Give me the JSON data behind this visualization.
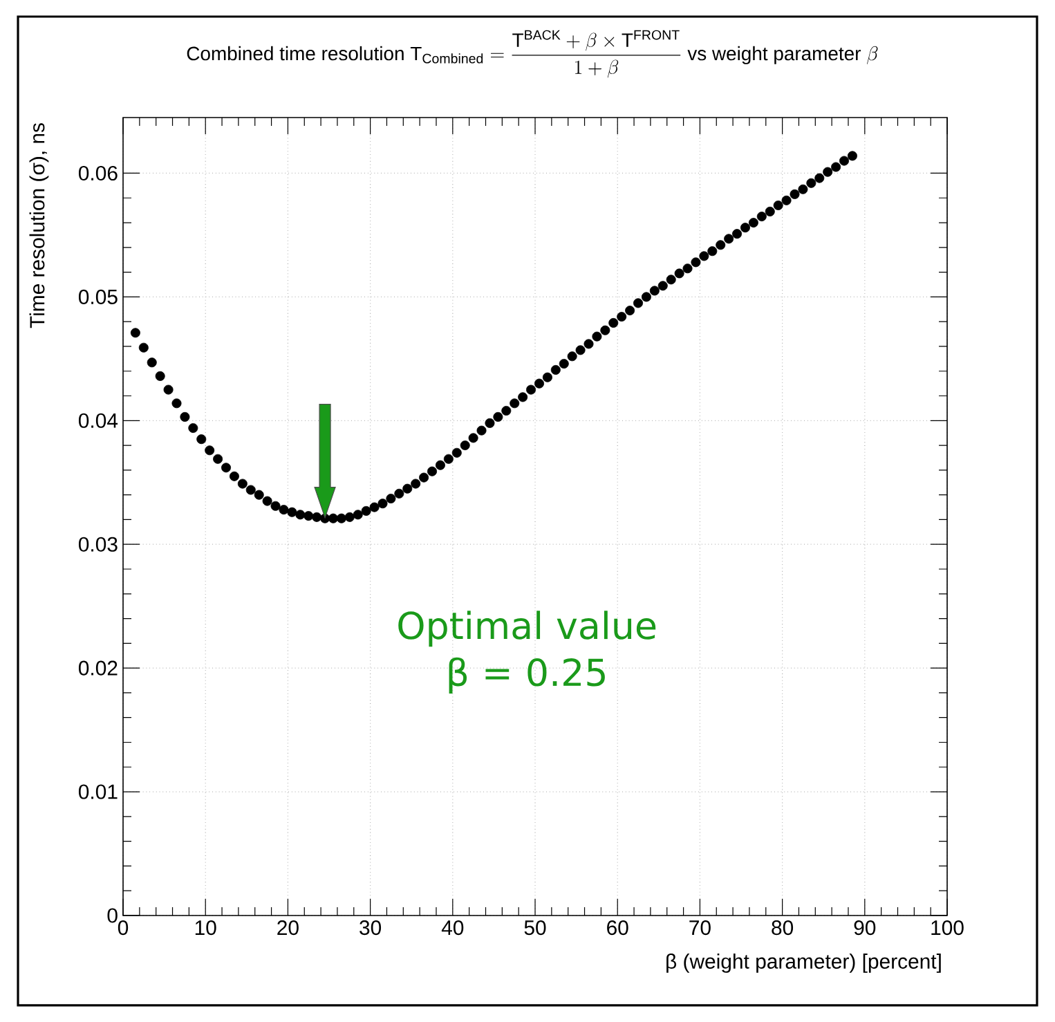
{
  "chart_data": {
    "type": "scatter",
    "title": "\\text{Combined time resolution }\\mathrm{T}_{\\text{Combined}} = \\dfrac{\\mathrm{T}^{\\text{BACK}} + \\beta \\times \\mathrm{T}^{\\text{FRONT}}}{1 + \\beta}\\text{ vs weight parameter }\\beta",
    "xlabel": "β (weight parameter) [percent]",
    "ylabel": "Time resolution (σ), ns",
    "x": [
      1.5,
      2.5,
      3.5,
      4.5,
      5.5,
      6.5,
      7.5,
      8.5,
      9.5,
      10.5,
      11.5,
      12.5,
      13.5,
      14.5,
      15.5,
      16.5,
      17.5,
      18.5,
      19.5,
      20.5,
      21.5,
      22.5,
      23.5,
      24.5,
      25.5,
      26.5,
      27.5,
      28.5,
      29.5,
      30.5,
      31.5,
      32.5,
      33.5,
      34.5,
      35.5,
      36.5,
      37.5,
      38.5,
      39.5,
      40.5,
      41.5,
      42.5,
      43.5,
      44.5,
      45.5,
      46.5,
      47.5,
      48.5,
      49.5,
      50.5,
      51.5,
      52.5,
      53.5,
      54.5,
      55.5,
      56.5,
      57.5,
      58.5,
      59.5,
      60.5,
      61.5,
      62.5,
      63.5,
      64.5,
      65.5,
      66.5,
      67.5,
      68.5,
      69.5,
      70.5,
      71.5,
      72.5,
      73.5,
      74.5,
      75.5,
      76.5,
      77.5,
      78.5,
      79.5,
      80.5,
      81.5,
      82.5,
      83.5,
      84.5,
      85.5,
      86.5,
      87.5,
      88.5
    ],
    "values": [
      0.0471,
      0.0459,
      0.0447,
      0.0436,
      0.0425,
      0.0414,
      0.0403,
      0.0394,
      0.0385,
      0.0376,
      0.0369,
      0.0362,
      0.0355,
      0.0349,
      0.0344,
      0.034,
      0.0335,
      0.0331,
      0.0328,
      0.0326,
      0.0324,
      0.0323,
      0.0322,
      0.0321,
      0.0321,
      0.0321,
      0.0322,
      0.0324,
      0.0327,
      0.033,
      0.0333,
      0.0337,
      0.0341,
      0.0345,
      0.0349,
      0.0354,
      0.0359,
      0.0364,
      0.0369,
      0.0374,
      0.038,
      0.0386,
      0.0392,
      0.0398,
      0.0403,
      0.0408,
      0.0414,
      0.0419,
      0.0425,
      0.043,
      0.0435,
      0.0441,
      0.0446,
      0.0452,
      0.0457,
      0.0462,
      0.0468,
      0.0473,
      0.0479,
      0.0484,
      0.0489,
      0.0495,
      0.05,
      0.0505,
      0.0509,
      0.0514,
      0.0519,
      0.0523,
      0.0528,
      0.0533,
      0.0537,
      0.0542,
      0.0547,
      0.0551,
      0.0556,
      0.056,
      0.0565,
      0.0569,
      0.0574,
      0.0578,
      0.0583,
      0.0587,
      0.0592,
      0.0596,
      0.0601,
      0.0605,
      0.061,
      0.0614
    ],
    "color": "#000000",
    "marker": "circle",
    "grid": true,
    "xlim": [
      0,
      100
    ],
    "xticks": [
      0,
      10,
      20,
      30,
      40,
      50,
      60,
      70,
      80,
      90,
      100
    ],
    "ylim": [
      0,
      0.0645
    ],
    "yticks": [
      0,
      0.01,
      0.02,
      0.03,
      0.04,
      0.05,
      0.06
    ],
    "annotations": [
      "Optimal value β = 0.25"
    ]
  }
}
